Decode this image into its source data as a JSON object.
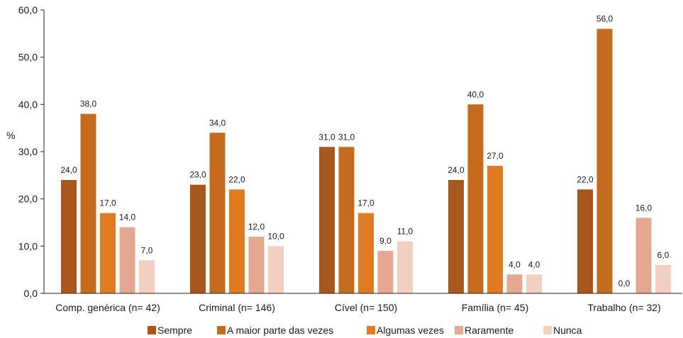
{
  "chart_data": {
    "type": "bar",
    "ylabel": "%",
    "ylim": [
      0,
      60
    ],
    "yticks": [
      "0,0",
      "10,0",
      "20,0",
      "30,0",
      "40,0",
      "50,0",
      "60,0"
    ],
    "grid": false,
    "legend_position": "bottom",
    "categories": [
      "Comp. genérica (n= 42)",
      "Criminal (n= 146)",
      "Cível (n= 150)",
      "Família (n= 45)",
      "Trabalho (n= 32)"
    ],
    "series": [
      {
        "name": "Sempre",
        "color": "#a8561c",
        "values": [
          24,
          23,
          31,
          24,
          22
        ],
        "labels": [
          "24,0",
          "23,0",
          "31,0",
          "24,0",
          "22,0"
        ]
      },
      {
        "name": "A maior parte das vezes",
        "color": "#c66a1e",
        "values": [
          38,
          34,
          31,
          40,
          56
        ],
        "labels": [
          "38,0",
          "34,0",
          "31,0",
          "40,0",
          "56,0"
        ]
      },
      {
        "name": "Algumas vezes",
        "color": "#e07b22",
        "values": [
          17,
          22,
          17,
          27,
          0
        ],
        "labels": [
          "17,0",
          "22,0",
          "17,0",
          "27,0",
          "0,0"
        ]
      },
      {
        "name": "Raramente",
        "color": "#e5a891",
        "values": [
          14,
          12,
          9,
          4,
          16
        ],
        "labels": [
          "14,0",
          "12,0",
          "9,0",
          "4,0",
          "16,0"
        ]
      },
      {
        "name": "Nunca",
        "color": "#f2cfc0",
        "values": [
          7,
          10,
          11,
          4,
          6
        ],
        "labels": [
          "7,0",
          "10,0",
          "11,0",
          "4,0",
          "6,0"
        ]
      }
    ]
  }
}
